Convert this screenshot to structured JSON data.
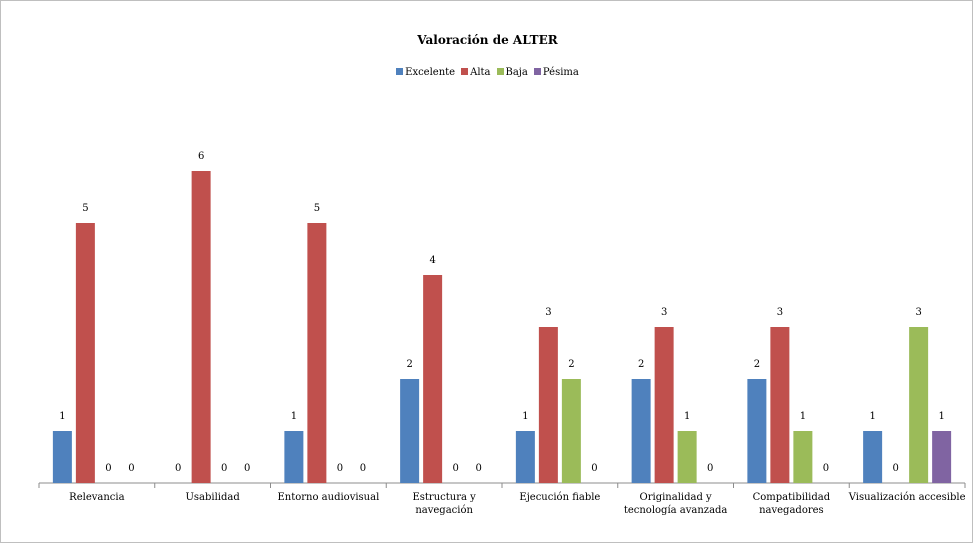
{
  "chart_data": {
    "type": "bar",
    "title": "Valoración de ALTER",
    "categories": [
      [
        "Relevancia"
      ],
      [
        "Usabilidad"
      ],
      [
        "Entorno audiovisual"
      ],
      [
        "Estructura y",
        "navegación"
      ],
      [
        "Ejecución fiable"
      ],
      [
        "Originalidad y",
        "tecnología avanzada"
      ],
      [
        "Compatibilidad",
        "navegadores"
      ],
      [
        "Visualización accesible"
      ]
    ],
    "series": [
      {
        "name": "Excelente",
        "color": "#4f81bd",
        "values": [
          1,
          0,
          1,
          2,
          1,
          2,
          2,
          1
        ]
      },
      {
        "name": "Alta",
        "color": "#c0504d",
        "values": [
          5,
          6,
          5,
          4,
          3,
          3,
          3,
          0
        ]
      },
      {
        "name": "Baja",
        "color": "#9bbb59",
        "values": [
          0,
          0,
          0,
          0,
          2,
          1,
          1,
          3
        ]
      },
      {
        "name": "Pésima",
        "color": "#8064a2",
        "values": [
          0,
          0,
          0,
          0,
          0,
          0,
          0,
          1
        ]
      }
    ],
    "ylim": [
      0,
      6
    ],
    "xlabel": "",
    "ylabel": "",
    "grid": false,
    "legend_position": "top",
    "data_labels": true
  }
}
